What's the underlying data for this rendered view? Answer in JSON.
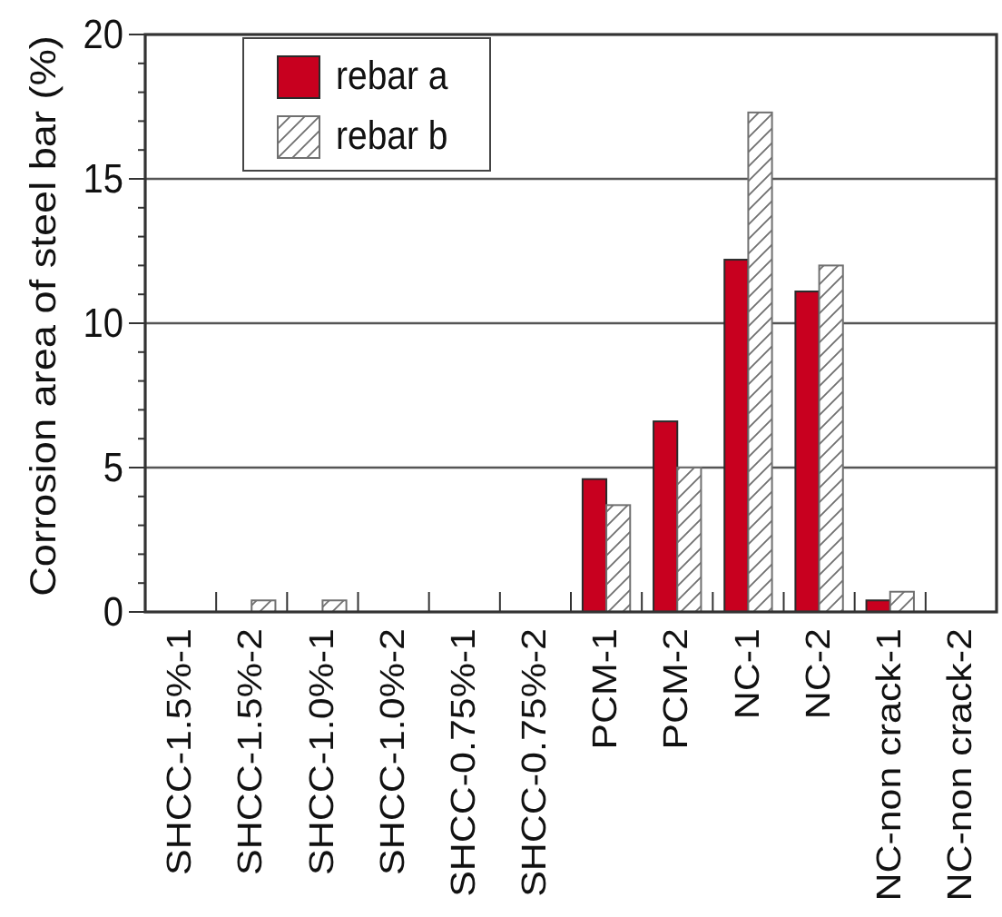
{
  "chart_data": {
    "type": "bar",
    "ylabel": "Corrosion area of steel bar (%)",
    "categories": [
      "SHCC-1.5%-1",
      "SHCC-1.5%-2",
      "SHCC-1.0%-1",
      "SHCC-1.0%-2",
      "SHCC-0.75%-1",
      "SHCC-0.75%-2",
      "PCM-1",
      "PCM-2",
      "NC-1",
      "NC-2",
      "NC-non crack-1",
      "NC-non crack-2"
    ],
    "series": [
      {
        "name": "rebar a",
        "color": "#c8001f",
        "values": [
          0,
          0,
          0,
          0,
          0,
          0,
          4.6,
          6.6,
          12.2,
          11.1,
          0.4,
          0
        ]
      },
      {
        "name": "rebar b",
        "color": "#707070",
        "values": [
          0,
          0.4,
          0.4,
          0,
          0,
          0,
          3.7,
          5.0,
          17.3,
          12.0,
          0.7,
          0
        ]
      }
    ],
    "ylim": [
      0,
      20
    ],
    "yticks": [
      0,
      {
        "value": 1,
        "label": null
      },
      {
        "value": 2,
        "label": null
      },
      {
        "value": 3,
        "label": null
      },
      {
        "value": 4,
        "label": null
      },
      5,
      {
        "value": 6,
        "label": null
      },
      {
        "value": 7,
        "label": null
      },
      {
        "value": 8,
        "label": null
      },
      {
        "value": 9,
        "label": null
      },
      10,
      {
        "value": 11,
        "label": null
      },
      {
        "value": 12,
        "label": null
      },
      {
        "value": 13,
        "label": null
      },
      {
        "value": 14,
        "label": null
      },
      15,
      {
        "value": 16,
        "label": null
      },
      {
        "value": 17,
        "label": null
      },
      {
        "value": 18,
        "label": null
      },
      {
        "value": 19,
        "label": null
      },
      20
    ],
    "grid": "y",
    "legend": "top left"
  }
}
